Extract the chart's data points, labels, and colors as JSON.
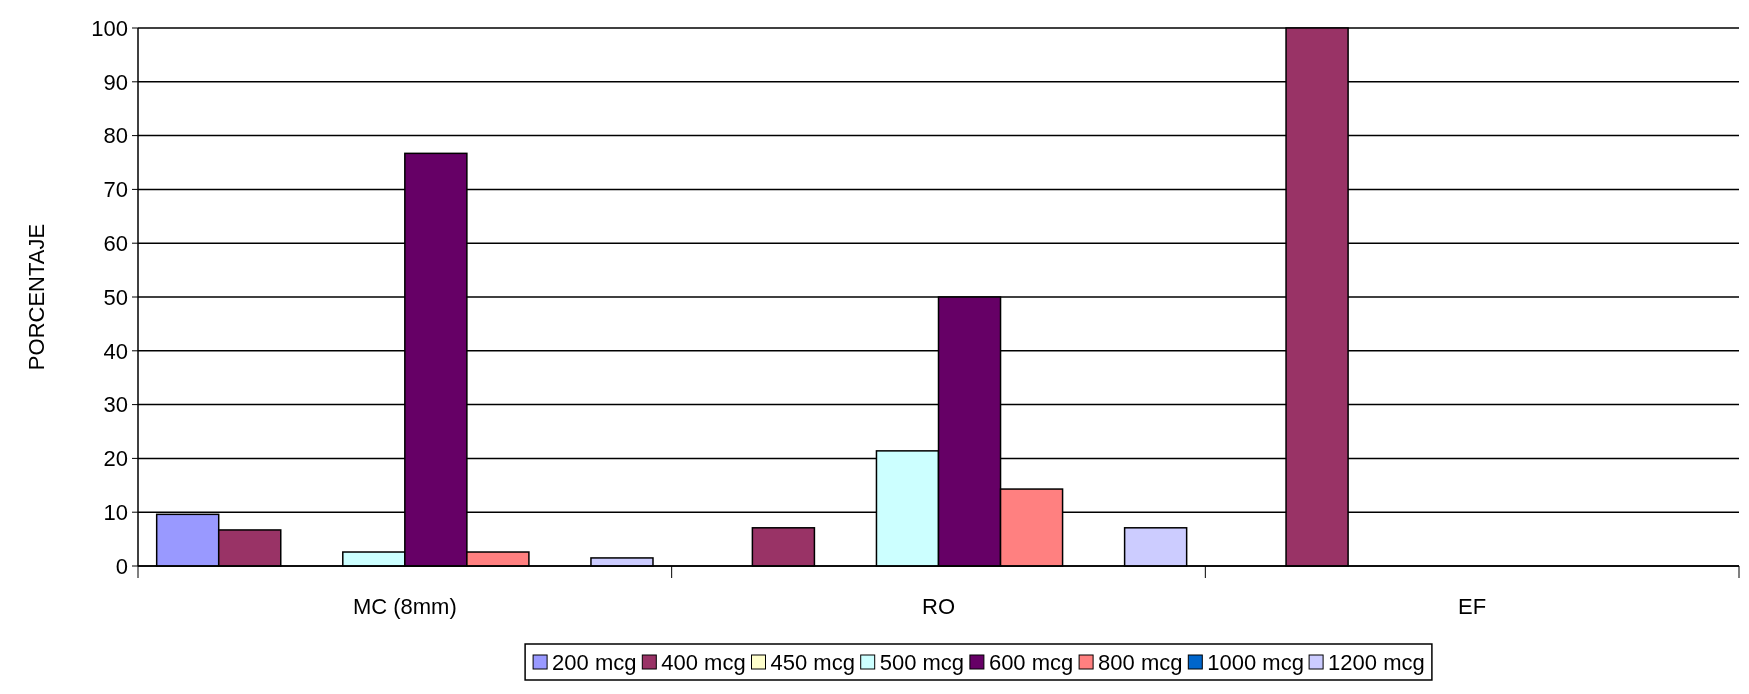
{
  "chart_data": {
    "type": "bar",
    "ylabel": "PORCENTAJE",
    "categories": [
      "MC (8mm)",
      "RO",
      "EF"
    ],
    "ylim": [
      0,
      100
    ],
    "yticks": [
      0,
      10,
      20,
      30,
      40,
      50,
      60,
      70,
      80,
      90,
      100
    ],
    "grid": "y",
    "legend": "bottom",
    "series": [
      {
        "name": "200 mcg",
        "color": "#9999ff",
        "values": [
          9.6,
          0,
          0
        ]
      },
      {
        "name": "400 mcg",
        "color": "#993366",
        "values": [
          6.7,
          7.1,
          100
        ]
      },
      {
        "name": "450 mcg",
        "color": "#ffffcc",
        "values": [
          0,
          0,
          0
        ]
      },
      {
        "name": "500 mcg",
        "color": "#ccffff",
        "values": [
          2.6,
          21.4,
          0
        ]
      },
      {
        "name": "600 mcg",
        "color": "#660066",
        "values": [
          76.7,
          50,
          0
        ]
      },
      {
        "name": "800 mcg",
        "color": "#ff8080",
        "values": [
          2.6,
          14.3,
          0
        ]
      },
      {
        "name": "1000 mcg",
        "color": "#0066cc",
        "values": [
          0,
          0,
          0
        ]
      },
      {
        "name": "1200 mcg",
        "color": "#ccccff",
        "values": [
          1.5,
          7.1,
          0
        ]
      }
    ]
  }
}
